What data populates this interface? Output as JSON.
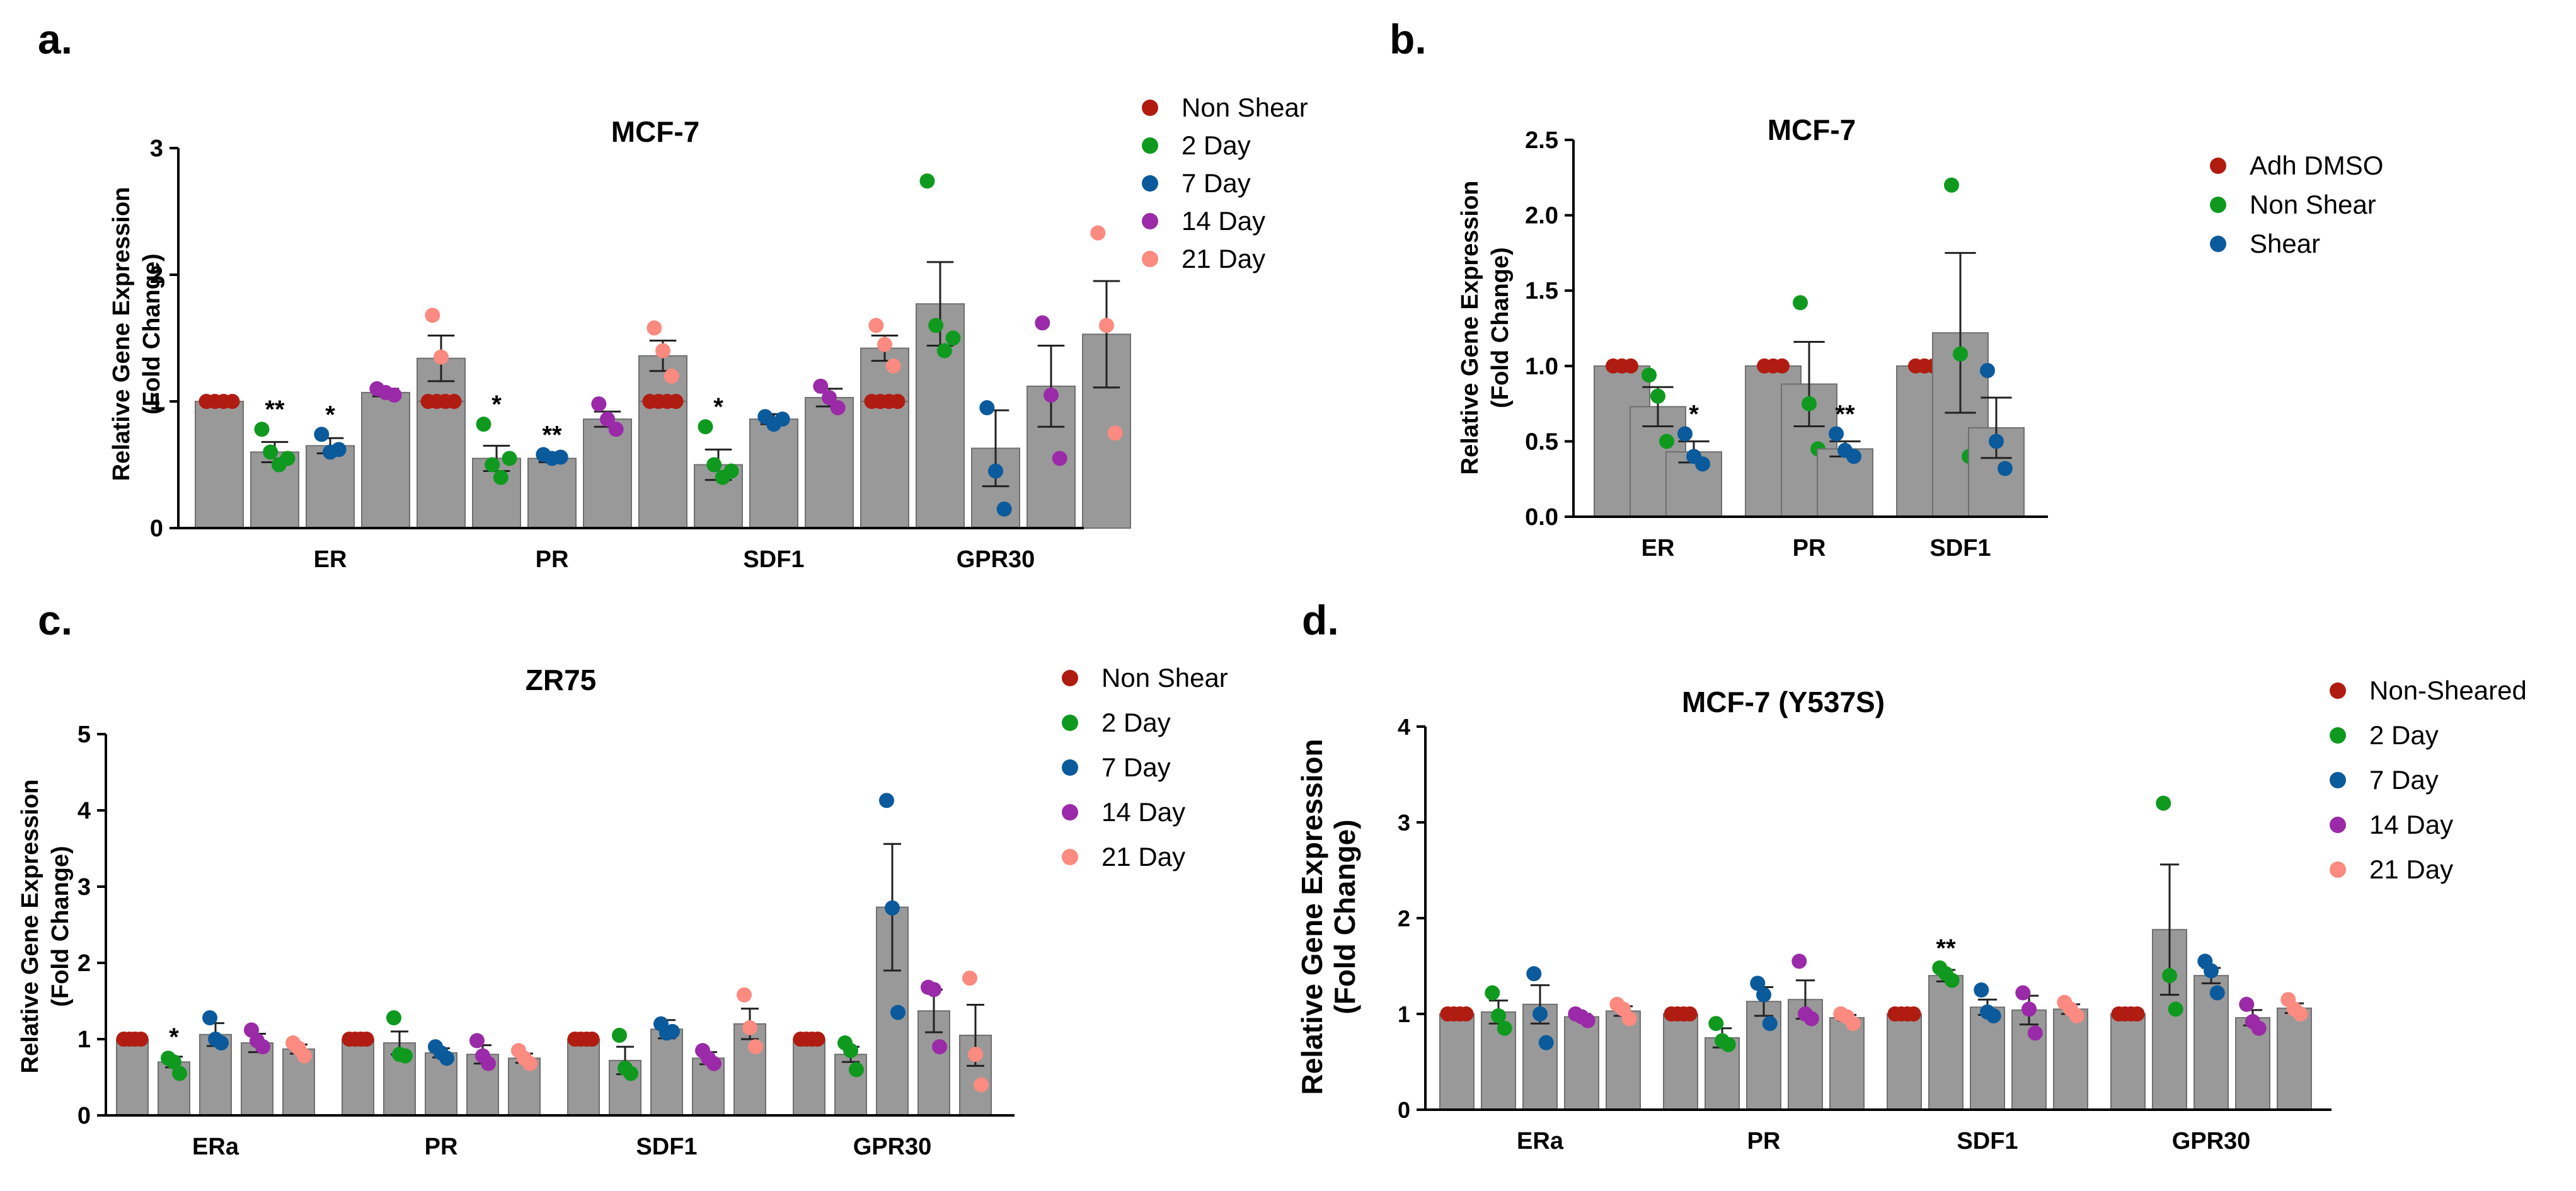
{
  "chart_data": [
    {
      "id": "a",
      "panel_label": "a.",
      "type": "bar",
      "title": "MCF-7",
      "ylabel": [
        "Relative Gene Expression",
        "(Fold Change)"
      ],
      "xlabel": "",
      "ylim": [
        0,
        3
      ],
      "yticks": [
        "0",
        "1",
        "2",
        "3"
      ],
      "categories": [
        "ER",
        "PR",
        "SDF1",
        "GPR30"
      ],
      "legend": [
        {
          "name": "Non Shear",
          "color": "#b01c11"
        },
        {
          "name": "2 Day",
          "color": "#0f9a1f"
        },
        {
          "name": "7 Day",
          "color": "#0b5a9c"
        },
        {
          "name": "14 Day",
          "color": "#9a2aa8"
        },
        {
          "name": "21 Day",
          "color": "#fb8a80"
        }
      ],
      "series": [
        {
          "name": "Non Shear",
          "values": [
            1.0,
            1.0,
            1.0,
            1.0
          ],
          "err": [
            0,
            0,
            0,
            0
          ],
          "points": [
            [
              1,
              1,
              1,
              1
            ],
            [
              1,
              1,
              1,
              1
            ],
            [
              1,
              1,
              1,
              1
            ],
            [
              1,
              1,
              1,
              1
            ]
          ],
          "sig": [
            "",
            "",
            "",
            ""
          ]
        },
        {
          "name": "2 Day",
          "values": [
            0.6,
            0.55,
            0.5,
            1.77
          ],
          "err": [
            0.08,
            0.1,
            0.12,
            0.33
          ],
          "points": [
            [
              0.78,
              0.6,
              0.5,
              0.55
            ],
            [
              0.82,
              0.5,
              0.4,
              0.55
            ],
            [
              0.8,
              0.5,
              0.4,
              0.45
            ],
            [
              2.74,
              1.6,
              1.4,
              1.5
            ]
          ],
          "sig": [
            "**",
            "*",
            "*",
            ""
          ]
        },
        {
          "name": "7 Day",
          "values": [
            0.65,
            0.55,
            0.86,
            0.63
          ],
          "err": [
            0.06,
            0.03,
            0.04,
            0.3
          ],
          "points": [
            [
              0.74,
              0.6,
              0.62
            ],
            [
              0.58,
              0.55,
              0.56
            ],
            [
              0.88,
              0.82,
              0.86
            ],
            [
              0.95,
              0.45,
              0.15
            ]
          ],
          "sig": [
            "*",
            "**",
            "",
            ""
          ]
        },
        {
          "name": "14 Day",
          "values": [
            1.07,
            0.86,
            1.03,
            1.12
          ],
          "err": [
            0.03,
            0.06,
            0.07,
            0.32
          ],
          "points": [
            [
              1.1,
              1.07,
              1.05
            ],
            [
              0.98,
              0.86,
              0.78
            ],
            [
              1.12,
              1.03,
              0.95
            ],
            [
              1.62,
              1.05,
              0.55
            ]
          ],
          "sig": [
            "",
            "",
            "",
            ""
          ]
        },
        {
          "name": "21 Day",
          "values": [
            1.34,
            1.36,
            1.42,
            1.53
          ],
          "err": [
            0.18,
            0.12,
            0.1,
            0.42
          ],
          "points": [
            [
              1.68,
              1.35,
              1.0
            ],
            [
              1.58,
              1.4,
              1.2
            ],
            [
              1.6,
              1.45,
              1.28
            ],
            [
              2.33,
              1.6,
              0.75
            ]
          ],
          "sig": [
            "",
            "",
            "",
            ""
          ]
        }
      ]
    },
    {
      "id": "b",
      "panel_label": "b.",
      "type": "bar",
      "title": "MCF-7",
      "ylabel": [
        "Relative Gene Expression",
        "(Fold Change)"
      ],
      "xlabel": "",
      "ylim": [
        0,
        2.5
      ],
      "yticks": [
        "0.0",
        "0.5",
        "1.0",
        "1.5",
        "2.0",
        "2.5"
      ],
      "categories": [
        "ER",
        "PR",
        "SDF1"
      ],
      "legend": [
        {
          "name": "Adh DMSO",
          "color": "#b01c11"
        },
        {
          "name": "Non Shear",
          "color": "#0f9a1f"
        },
        {
          "name": "Shear",
          "color": "#0b5a9c"
        }
      ],
      "series": [
        {
          "name": "Adh DMSO",
          "values": [
            1.0,
            1.0,
            1.0
          ],
          "err": [
            0,
            0,
            0
          ],
          "points": [
            [
              1,
              1,
              1
            ],
            [
              1,
              1,
              1
            ],
            [
              1,
              1,
              1
            ]
          ],
          "sig": [
            "",
            "",
            ""
          ]
        },
        {
          "name": "Non Shear",
          "values": [
            0.73,
            0.88,
            1.22
          ],
          "err": [
            0.13,
            0.28,
            0.53
          ],
          "points": [
            [
              0.94,
              0.8,
              0.5
            ],
            [
              1.42,
              0.75,
              0.45
            ],
            [
              2.2,
              1.08,
              0.4
            ]
          ],
          "sig": [
            "",
            "",
            ""
          ]
        },
        {
          "name": "Shear",
          "values": [
            0.43,
            0.45,
            0.59
          ],
          "err": [
            0.07,
            0.05,
            0.2
          ],
          "points": [
            [
              0.55,
              0.4,
              0.35
            ],
            [
              0.55,
              0.44,
              0.4
            ],
            [
              0.97,
              0.5,
              0.32
            ]
          ],
          "sig": [
            "*",
            "**",
            ""
          ]
        }
      ]
    },
    {
      "id": "c",
      "panel_label": "c.",
      "type": "bar",
      "title": "ZR75",
      "ylabel": [
        "Relative Gene Expression",
        "(Fold Change)"
      ],
      "xlabel": "",
      "ylim": [
        0,
        5
      ],
      "yticks": [
        "0",
        "1",
        "2",
        "3",
        "4",
        "5"
      ],
      "categories": [
        "ERa",
        "PR",
        "SDF1",
        "GPR30"
      ],
      "legend": [
        {
          "name": "Non Shear",
          "color": "#b01c11"
        },
        {
          "name": "2 Day",
          "color": "#0f9a1f"
        },
        {
          "name": "7 Day",
          "color": "#0b5a9c"
        },
        {
          "name": "14 Day",
          "color": "#9a2aa8"
        },
        {
          "name": "21 Day",
          "color": "#fb8a80"
        }
      ],
      "series": [
        {
          "name": "Non Shear",
          "values": [
            1.0,
            1.0,
            1.0,
            1.0
          ],
          "err": [
            0,
            0,
            0,
            0
          ],
          "points": [
            [
              1,
              1,
              1,
              1
            ],
            [
              1,
              1,
              1,
              1
            ],
            [
              1,
              1,
              1,
              1
            ],
            [
              1,
              1,
              1,
              1
            ]
          ],
          "sig": [
            "",
            "",
            "",
            ""
          ]
        },
        {
          "name": "2 Day",
          "values": [
            0.7,
            0.95,
            0.72,
            0.8
          ],
          "err": [
            0.07,
            0.15,
            0.18,
            0.1
          ],
          "points": [
            [
              0.75,
              0.7,
              0.55
            ],
            [
              1.28,
              0.8,
              0.78
            ],
            [
              1.05,
              0.62,
              0.55
            ],
            [
              0.95,
              0.85,
              0.6
            ]
          ],
          "sig": [
            "*",
            "",
            "",
            ""
          ]
        },
        {
          "name": "7 Day",
          "values": [
            1.06,
            0.82,
            1.13,
            2.73
          ],
          "err": [
            0.15,
            0.06,
            0.12,
            0.83
          ],
          "points": [
            [
              1.28,
              1.0,
              0.95
            ],
            [
              0.9,
              0.82,
              0.75
            ],
            [
              1.2,
              1.08,
              1.1
            ],
            [
              4.13,
              2.72,
              1.35
            ]
          ],
          "sig": [
            "",
            "",
            "",
            ""
          ]
        },
        {
          "name": "14 Day",
          "values": [
            0.95,
            0.8,
            0.75,
            1.37
          ],
          "err": [
            0.12,
            0.12,
            0.08,
            0.28
          ],
          "points": [
            [
              1.12,
              0.98,
              0.9
            ],
            [
              0.98,
              0.78,
              0.68
            ],
            [
              0.85,
              0.75,
              0.68
            ],
            [
              1.68,
              1.65,
              0.9
            ]
          ],
          "sig": [
            "",
            "",
            "",
            ""
          ]
        },
        {
          "name": "21 Day",
          "values": [
            0.87,
            0.75,
            1.2,
            1.05
          ],
          "err": [
            0.06,
            0.06,
            0.2,
            0.4
          ],
          "points": [
            [
              0.95,
              0.88,
              0.78
            ],
            [
              0.85,
              0.75,
              0.68
            ],
            [
              1.58,
              1.15,
              0.9
            ],
            [
              1.8,
              0.8,
              0.4
            ]
          ],
          "sig": [
            "",
            "",
            "",
            ""
          ]
        }
      ]
    },
    {
      "id": "d",
      "panel_label": "d.",
      "type": "bar",
      "title": "MCF-7 (Y537S)",
      "ylabel": [
        "Relative Gene Expression",
        "(Fold Change)"
      ],
      "xlabel": "",
      "ylim": [
        0,
        4
      ],
      "yticks": [
        "0",
        "1",
        "2",
        "3",
        "4"
      ],
      "categories": [
        "ERa",
        "PR",
        "SDF1",
        "GPR30"
      ],
      "legend": [
        {
          "name": "Non-Sheared",
          "color": "#b01c11"
        },
        {
          "name": "2 Day",
          "color": "#0f9a1f"
        },
        {
          "name": "7 Day",
          "color": "#0b5a9c"
        },
        {
          "name": "14 Day",
          "color": "#9a2aa8"
        },
        {
          "name": "21 Day",
          "color": "#fb8a80"
        }
      ],
      "series": [
        {
          "name": "Non-Sheared",
          "values": [
            1.0,
            1.0,
            1.0,
            1.0
          ],
          "err": [
            0,
            0,
            0,
            0
          ],
          "points": [
            [
              1,
              1,
              1,
              1
            ],
            [
              1,
              1,
              1,
              1
            ],
            [
              1,
              1,
              1,
              1
            ],
            [
              1,
              1,
              1,
              1
            ]
          ],
          "sig": [
            "",
            "",
            "",
            ""
          ]
        },
        {
          "name": "2 Day",
          "values": [
            1.02,
            0.75,
            1.4,
            1.88
          ],
          "err": [
            0.12,
            0.1,
            0.06,
            0.68
          ],
          "points": [
            [
              1.22,
              0.98,
              0.85
            ],
            [
              0.9,
              0.72,
              0.68
            ],
            [
              1.48,
              1.42,
              1.35
            ],
            [
              3.2,
              1.4,
              1.05
            ]
          ],
          "sig": [
            "",
            "",
            "**",
            ""
          ]
        },
        {
          "name": "7 Day",
          "values": [
            1.1,
            1.13,
            1.07,
            1.4
          ],
          "err": [
            0.2,
            0.15,
            0.08,
            0.08
          ],
          "points": [
            [
              1.42,
              1.0,
              0.7
            ],
            [
              1.32,
              1.2,
              0.9
            ],
            [
              1.25,
              1.02,
              0.98
            ],
            [
              1.55,
              1.45,
              1.22
            ]
          ],
          "sig": [
            "",
            "",
            "",
            ""
          ]
        },
        {
          "name": "14 Day",
          "values": [
            0.97,
            1.15,
            1.04,
            0.96
          ],
          "err": [
            0.03,
            0.2,
            0.15,
            0.08
          ],
          "points": [
            [
              1.0,
              0.97,
              0.93
            ],
            [
              1.55,
              1.0,
              0.95
            ],
            [
              1.22,
              1.05,
              0.8
            ],
            [
              1.1,
              0.92,
              0.85
            ]
          ],
          "sig": [
            "",
            "",
            "",
            ""
          ]
        },
        {
          "name": "21 Day",
          "values": [
            1.03,
            0.96,
            1.05,
            1.06
          ],
          "err": [
            0.05,
            0.03,
            0.05,
            0.05
          ],
          "points": [
            [
              1.1,
              1.05,
              0.95
            ],
            [
              1.0,
              0.97,
              0.9
            ],
            [
              1.12,
              1.05,
              0.98
            ],
            [
              1.15,
              1.05,
              1.0
            ]
          ],
          "sig": [
            "",
            "",
            "",
            ""
          ]
        }
      ]
    }
  ]
}
